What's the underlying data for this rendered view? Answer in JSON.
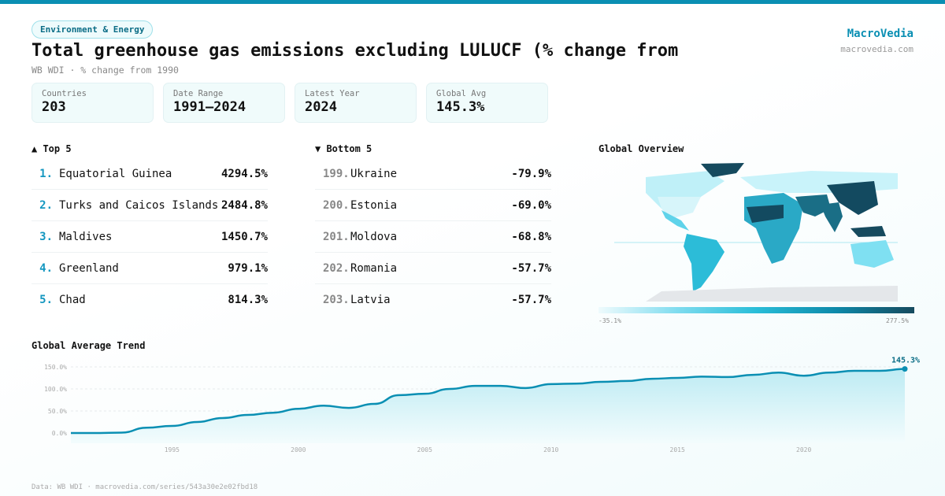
{
  "header": {
    "category": "Environment & Energy",
    "title": "Total greenhouse gas emissions excluding LULUCF (% change from",
    "subtitle": "WB WDI · % change from 1990",
    "brand": "MacroVedia",
    "brand_url": "macrovedia.com"
  },
  "stats": [
    {
      "label": "Countries",
      "value": "203"
    },
    {
      "label": "Date Range",
      "value": "1991–2024"
    },
    {
      "label": "Latest Year",
      "value": "2024"
    },
    {
      "label": "Global Avg",
      "value": "145.3%"
    }
  ],
  "top5": {
    "title": "▲ Top 5",
    "items": [
      {
        "rank": "1.",
        "name": "Equatorial Guinea",
        "value": "4294.5%"
      },
      {
        "rank": "2.",
        "name": "Turks and Caicos Islands",
        "value": "2484.8%"
      },
      {
        "rank": "3.",
        "name": "Maldives",
        "value": "1450.7%"
      },
      {
        "rank": "4.",
        "name": "Greenland",
        "value": "979.1%"
      },
      {
        "rank": "5.",
        "name": "Chad",
        "value": "814.3%"
      }
    ]
  },
  "bottom5": {
    "title": "▼ Bottom 5",
    "items": [
      {
        "rank": "199.",
        "name": "Ukraine",
        "value": "-79.9%"
      },
      {
        "rank": "200.",
        "name": "Estonia",
        "value": "-69.0%"
      },
      {
        "rank": "201.",
        "name": "Moldova",
        "value": "-68.8%"
      },
      {
        "rank": "202.",
        "name": "Romania",
        "value": "-57.7%"
      },
      {
        "rank": "203.",
        "name": "Latvia",
        "value": "-57.7%"
      }
    ]
  },
  "map": {
    "title": "Global Overview",
    "scale_min": "-35.1%",
    "scale_max": "277.5%",
    "colors": [
      "#effbfd",
      "#7fdcef",
      "#29bdd8",
      "#0e8aaa",
      "#164a5e"
    ]
  },
  "chart_data": {
    "type": "area",
    "title": "Global Average Trend",
    "x": [
      1991,
      1992,
      1993,
      1994,
      1995,
      1996,
      1997,
      1998,
      1999,
      2000,
      2001,
      2002,
      2003,
      2004,
      2005,
      2006,
      2007,
      2008,
      2009,
      2010,
      2011,
      2012,
      2013,
      2014,
      2015,
      2016,
      2017,
      2018,
      2019,
      2020,
      2021,
      2022,
      2023,
      2024
    ],
    "values": [
      0,
      0,
      1,
      12,
      16,
      25,
      34,
      41,
      46,
      55,
      62,
      57,
      66,
      86,
      89,
      100,
      107,
      107,
      102,
      111,
      112,
      116,
      118,
      123,
      125,
      128,
      127,
      132,
      137,
      130,
      137,
      141,
      141,
      145.3
    ],
    "yticks": [
      "0.0%",
      "50.0%",
      "100.0%",
      "150.0%"
    ],
    "xticks": [
      "1995",
      "2000",
      "2005",
      "2010",
      "2015",
      "2020"
    ],
    "ylim": [
      0,
      150
    ],
    "last_label": "145.3%",
    "color": "#0a8fb3",
    "grid": true
  },
  "footer": "Data: WB WDI · macrovedia.com/series/543a30e2e02fbd18"
}
